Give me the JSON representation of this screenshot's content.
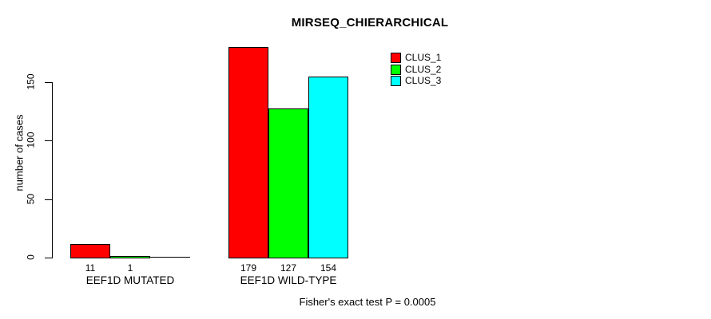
{
  "chart_data": {
    "type": "bar",
    "title": "MIRSEQ_CHIERARCHICAL",
    "ylabel": "number of cases",
    "xlabel": "",
    "ylim": [
      0,
      150
    ],
    "yticks": [
      0,
      50,
      100,
      150
    ],
    "grid": false,
    "legend": {
      "position": "top-right",
      "entries": [
        "CLUS_1",
        "CLUS_2",
        "CLUS_3"
      ]
    },
    "categories": [
      "EEF1D MUTATED",
      "EEF1D WILD-TYPE"
    ],
    "series": [
      {
        "name": "CLUS_1",
        "color": "#ff0000",
        "values": [
          11,
          179
        ],
        "labels": [
          "11",
          "179"
        ]
      },
      {
        "name": "CLUS_2",
        "color": "#00ff00",
        "values": [
          1,
          127
        ],
        "labels": [
          "1",
          "127"
        ]
      },
      {
        "name": "CLUS_3",
        "color": "#00ffff",
        "values": [
          0,
          154
        ],
        "labels": [
          "",
          "154"
        ]
      }
    ],
    "annotation": "Fisher's exact test P = 0.0005",
    "axis_color": "#000000",
    "bar_border_color": "#000000",
    "background": "#ffffff"
  }
}
